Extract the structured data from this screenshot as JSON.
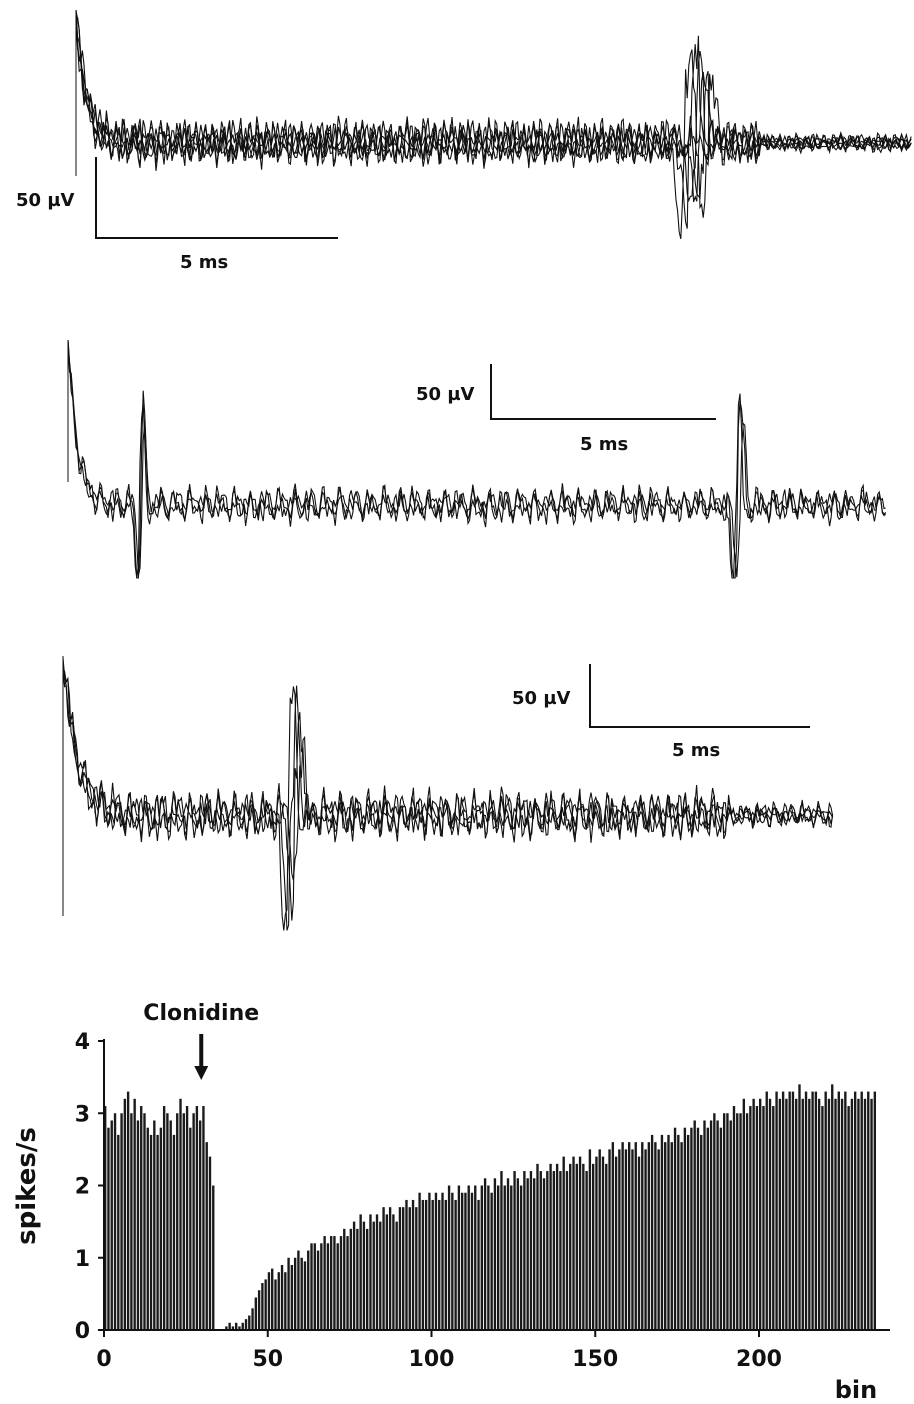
{
  "traces": {
    "panels": [
      {
        "id": "panel-1",
        "amplitude_scale": "50 µV",
        "time_scale": "5 ms",
        "sweeps": 6
      },
      {
        "id": "panel-2",
        "amplitude_scale": "50 µV",
        "time_scale": "5 ms",
        "sweeps": 3
      },
      {
        "id": "panel-3",
        "amplitude_scale": "50 µV",
        "time_scale": "5 ms",
        "sweeps": 4
      }
    ]
  },
  "chart_data": {
    "type": "bar",
    "annotation": "Clonidine",
    "annotation_bin": 30,
    "xlabel": "bin",
    "ylabel": "spikes/s",
    "xlim": [
      0,
      240
    ],
    "ylim": [
      0,
      4
    ],
    "xticks": [
      0,
      50,
      100,
      150,
      200
    ],
    "yticks": [
      0,
      1,
      2,
      3,
      4
    ],
    "series": [
      {
        "values": [
          3.1,
          2.8,
          2.9,
          3.0,
          2.7,
          3.0,
          3.2,
          3.3,
          3.0,
          3.2,
          2.9,
          3.1,
          3.0,
          2.8,
          2.7,
          2.9,
          2.7,
          2.8,
          3.1,
          3.0,
          2.9,
          2.7,
          3.0,
          3.2,
          3.0,
          3.1,
          2.8,
          3.0,
          3.1,
          2.9,
          3.1,
          2.6,
          2.4,
          2.0,
          0,
          0,
          0,
          0.05,
          0.1,
          0.05,
          0.1,
          0.05,
          0.1,
          0.15,
          0.2,
          0.3,
          0.45,
          0.55,
          0.65,
          0.7,
          0.8,
          0.85,
          0.7,
          0.8,
          0.9,
          0.8,
          1.0,
          0.9,
          1.0,
          1.1,
          1.0,
          0.95,
          1.1,
          1.2,
          1.2,
          1.1,
          1.2,
          1.3,
          1.2,
          1.3,
          1.3,
          1.2,
          1.3,
          1.4,
          1.3,
          1.4,
          1.5,
          1.4,
          1.6,
          1.5,
          1.4,
          1.6,
          1.5,
          1.6,
          1.5,
          1.7,
          1.6,
          1.7,
          1.6,
          1.5,
          1.7,
          1.7,
          1.8,
          1.7,
          1.8,
          1.7,
          1.9,
          1.8,
          1.8,
          1.9,
          1.8,
          1.9,
          1.8,
          1.9,
          1.8,
          2.0,
          1.9,
          1.8,
          2.0,
          1.9,
          1.9,
          2.0,
          1.9,
          2.0,
          1.8,
          2.0,
          2.1,
          2.0,
          1.9,
          2.1,
          2.0,
          2.2,
          2.0,
          2.1,
          2.0,
          2.2,
          2.1,
          2.0,
          2.2,
          2.1,
          2.2,
          2.1,
          2.3,
          2.2,
          2.1,
          2.2,
          2.3,
          2.2,
          2.3,
          2.2,
          2.4,
          2.2,
          2.3,
          2.4,
          2.3,
          2.4,
          2.3,
          2.2,
          2.5,
          2.3,
          2.4,
          2.5,
          2.4,
          2.3,
          2.5,
          2.6,
          2.4,
          2.5,
          2.6,
          2.5,
          2.6,
          2.5,
          2.6,
          2.4,
          2.6,
          2.5,
          2.6,
          2.7,
          2.6,
          2.5,
          2.7,
          2.6,
          2.7,
          2.6,
          2.8,
          2.7,
          2.6,
          2.8,
          2.7,
          2.8,
          2.9,
          2.8,
          2.7,
          2.9,
          2.8,
          2.9,
          3.0,
          2.9,
          2.8,
          3.0,
          3.0,
          2.9,
          3.1,
          3.0,
          3.0,
          3.2,
          3.0,
          3.1,
          3.2,
          3.1,
          3.2,
          3.1,
          3.3,
          3.2,
          3.1,
          3.3,
          3.2,
          3.3,
          3.2,
          3.3,
          3.3,
          3.2,
          3.4,
          3.2,
          3.3,
          3.2,
          3.3,
          3.3,
          3.2,
          3.1,
          3.3,
          3.2,
          3.4,
          3.2,
          3.3,
          3.2,
          3.3,
          3.1,
          3.2,
          3.3,
          3.2,
          3.3,
          3.2,
          3.3,
          3.2,
          3.3
        ]
      }
    ]
  }
}
